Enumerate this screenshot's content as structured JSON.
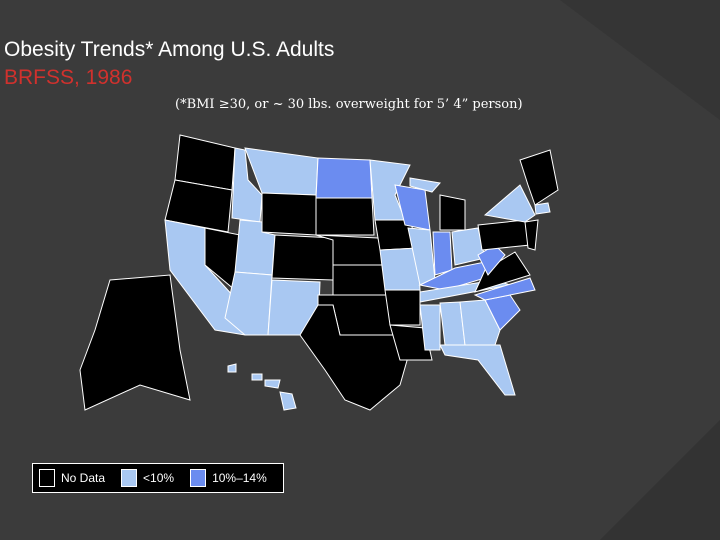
{
  "title": "Obesity Trends* Among U.S. Adults",
  "subtitle": "BRFSS, 1986",
  "note": "(*BMI ≥30, or ~ 30 lbs. overweight for 5’ 4” person)",
  "legend": {
    "items": [
      {
        "label": "No Data",
        "color": "#000000"
      },
      {
        "label": "<10%",
        "color": "#a9c8f2"
      },
      {
        "label": "10%–14%",
        "color": "#6b8cf0"
      }
    ]
  }
}
